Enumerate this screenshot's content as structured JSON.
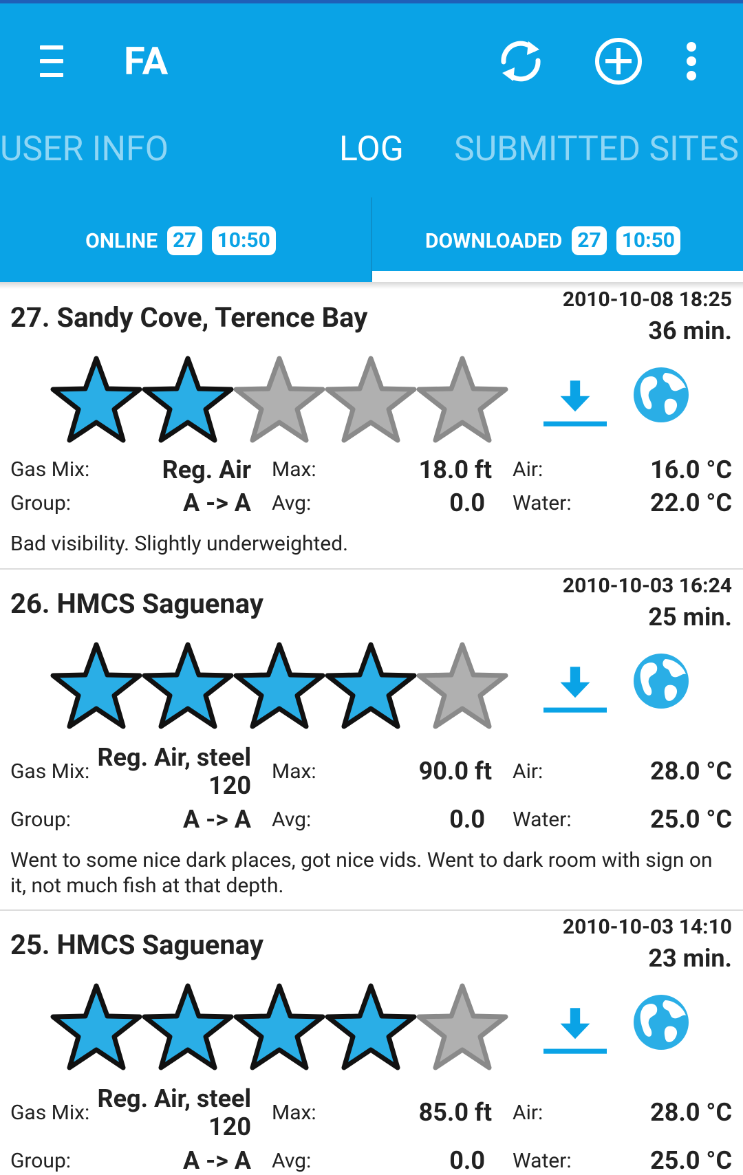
{
  "appbar": {
    "title": "FA",
    "icons": [
      "menu-icon",
      "sync-icon",
      "add-circle-icon",
      "overflow-menu-icon"
    ],
    "colors": {
      "primary": "#0aa3e6",
      "status_bar": "#1f5fb8",
      "star_on": "#2aaee6",
      "star_off": "#b0b0b0"
    }
  },
  "tabs": [
    {
      "label": "USER INFO",
      "active": false
    },
    {
      "label": "LOG",
      "active": true
    },
    {
      "label": "SUBMITTED SITES",
      "active": false
    }
  ],
  "subtabs": [
    {
      "label": "ONLINE",
      "count": "27",
      "time": "10:50",
      "active": false
    },
    {
      "label": "DOWNLOADED",
      "count": "27",
      "time": "10:50",
      "active": true
    }
  ],
  "labels": {
    "gas": "Gas Mix:",
    "group": "Group:",
    "max": "Max:",
    "avg": "Avg:",
    "air": "Air:",
    "water": "Water:"
  },
  "entries": [
    {
      "title": "27. Sandy Cove, Terence Bay",
      "date": "2010-10-08 18:25",
      "duration": "36 min.",
      "rating": 2,
      "gas_mix": "Reg. Air",
      "group": "A -> A",
      "max": "18.0 ft",
      "avg": "0.0",
      "air": "16.0 °C",
      "water": "22.0 °C",
      "note": "Bad visibility. Slightly underweighted."
    },
    {
      "title": "26. HMCS Saguenay",
      "date": "2010-10-03 16:24",
      "duration": "25 min.",
      "rating": 4,
      "gas_mix": "Reg. Air, steel 120",
      "group": "A -> A",
      "max": "90.0 ft",
      "avg": "0.0",
      "air": "28.0 °C",
      "water": "25.0 °C",
      "note": "Went to some nice dark places, got nice vids. Went to dark room with sign on it, not much fish at that depth."
    },
    {
      "title": "25. HMCS Saguenay",
      "date": "2010-10-03 14:10",
      "duration": "23 min.",
      "rating": 4,
      "gas_mix": "Reg. Air, steel 120",
      "group": "A -> A",
      "max": "85.0 ft",
      "avg": "0.0",
      "air": "28.0 °C",
      "water": "25.0 °C",
      "note": ""
    }
  ]
}
